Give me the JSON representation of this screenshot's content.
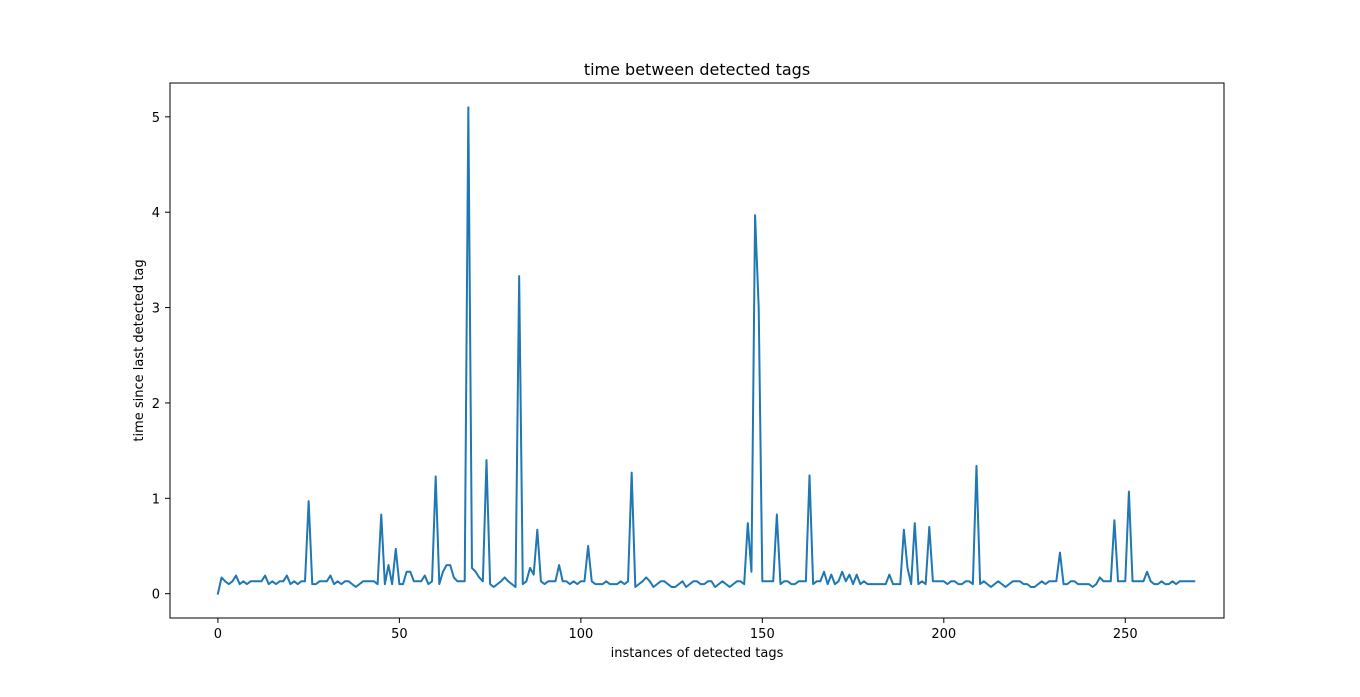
{
  "chart_data": {
    "type": "line",
    "title": "time between detected tags",
    "xlabel": "instances of detected tags",
    "ylabel": "time since last detected tag",
    "xlim": [
      -13.2,
      277.2
    ],
    "ylim": [
      -0.255,
      5.355
    ],
    "xticks": [
      {
        "value": 0,
        "label": "0"
      },
      {
        "value": 50,
        "label": "50"
      },
      {
        "value": 100,
        "label": "100"
      },
      {
        "value": 150,
        "label": "150"
      },
      {
        "value": 200,
        "label": "200"
      },
      {
        "value": 250,
        "label": "250"
      }
    ],
    "yticks": [
      {
        "value": 0,
        "label": "0"
      },
      {
        "value": 1,
        "label": "1"
      },
      {
        "value": 2,
        "label": "2"
      },
      {
        "value": 3,
        "label": "3"
      },
      {
        "value": 4,
        "label": "4"
      },
      {
        "value": 5,
        "label": "5"
      }
    ],
    "grid": false,
    "series_color": "#1f77b4",
    "series": [
      {
        "values": [
          0.0,
          0.17,
          0.13,
          0.1,
          0.13,
          0.19,
          0.1,
          0.13,
          0.1,
          0.13,
          0.13,
          0.13,
          0.13,
          0.19,
          0.1,
          0.13,
          0.1,
          0.13,
          0.13,
          0.19,
          0.1,
          0.13,
          0.1,
          0.13,
          0.13,
          0.97,
          0.1,
          0.1,
          0.13,
          0.13,
          0.13,
          0.19,
          0.1,
          0.13,
          0.1,
          0.13,
          0.13,
          0.1,
          0.07,
          0.1,
          0.13,
          0.13,
          0.13,
          0.13,
          0.1,
          0.83,
          0.1,
          0.3,
          0.1,
          0.47,
          0.1,
          0.1,
          0.23,
          0.23,
          0.13,
          0.13,
          0.13,
          0.19,
          0.1,
          0.13,
          1.23,
          0.1,
          0.23,
          0.3,
          0.3,
          0.17,
          0.13,
          0.13,
          0.13,
          5.1,
          0.27,
          0.23,
          0.17,
          0.13,
          1.4,
          0.1,
          0.07,
          0.1,
          0.13,
          0.17,
          0.13,
          0.1,
          0.07,
          3.33,
          0.1,
          0.13,
          0.27,
          0.2,
          0.67,
          0.13,
          0.1,
          0.13,
          0.13,
          0.13,
          0.3,
          0.13,
          0.13,
          0.1,
          0.13,
          0.1,
          0.13,
          0.13,
          0.5,
          0.13,
          0.1,
          0.1,
          0.1,
          0.13,
          0.1,
          0.1,
          0.1,
          0.13,
          0.1,
          0.13,
          1.27,
          0.07,
          0.1,
          0.13,
          0.17,
          0.13,
          0.07,
          0.1,
          0.13,
          0.13,
          0.1,
          0.07,
          0.07,
          0.1,
          0.13,
          0.07,
          0.1,
          0.13,
          0.13,
          0.1,
          0.1,
          0.13,
          0.13,
          0.07,
          0.1,
          0.13,
          0.1,
          0.07,
          0.1,
          0.13,
          0.13,
          0.1,
          0.74,
          0.23,
          3.97,
          3.0,
          0.13,
          0.13,
          0.13,
          0.13,
          0.83,
          0.1,
          0.13,
          0.13,
          0.1,
          0.1,
          0.13,
          0.13,
          0.13,
          1.24,
          0.1,
          0.13,
          0.13,
          0.23,
          0.1,
          0.2,
          0.1,
          0.13,
          0.23,
          0.13,
          0.2,
          0.1,
          0.2,
          0.1,
          0.13,
          0.1,
          0.1,
          0.1,
          0.1,
          0.1,
          0.1,
          0.2,
          0.1,
          0.1,
          0.1,
          0.67,
          0.27,
          0.1,
          0.74,
          0.1,
          0.13,
          0.1,
          0.7,
          0.13,
          0.13,
          0.13,
          0.13,
          0.1,
          0.13,
          0.13,
          0.1,
          0.1,
          0.13,
          0.13,
          0.1,
          1.34,
          0.1,
          0.13,
          0.1,
          0.07,
          0.1,
          0.13,
          0.1,
          0.07,
          0.1,
          0.13,
          0.13,
          0.13,
          0.1,
          0.1,
          0.07,
          0.07,
          0.1,
          0.13,
          0.1,
          0.13,
          0.13,
          0.13,
          0.43,
          0.1,
          0.1,
          0.13,
          0.13,
          0.1,
          0.1,
          0.1,
          0.1,
          0.07,
          0.1,
          0.17,
          0.13,
          0.13,
          0.13,
          0.77,
          0.13,
          0.13,
          0.13,
          1.07,
          0.13,
          0.13,
          0.13,
          0.13,
          0.23,
          0.13,
          0.1,
          0.1,
          0.13,
          0.1,
          0.1,
          0.13,
          0.1,
          0.13,
          0.13,
          0.13,
          0.13,
          0.13
        ]
      }
    ]
  }
}
